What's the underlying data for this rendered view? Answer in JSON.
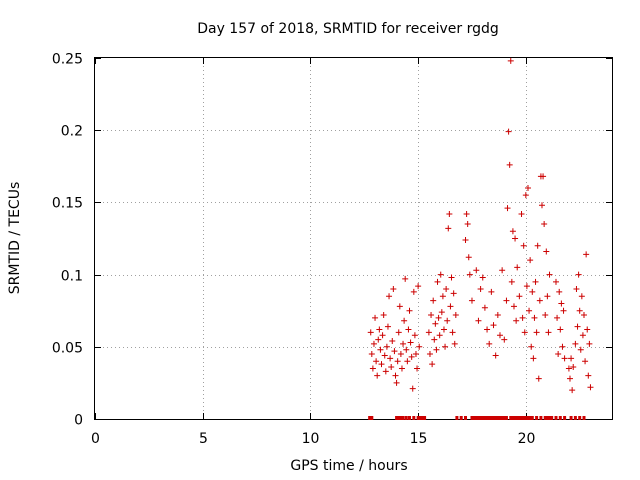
{
  "chart_data": {
    "type": "scatter",
    "title": "Day 157 of 2018, SRMTID for receiver rgdg",
    "xlabel": "GPS time / hours",
    "ylabel": "SRMTID / TECUs",
    "xlim": [
      0,
      24
    ],
    "ylim": [
      0,
      0.25
    ],
    "xticks": [
      0,
      5,
      10,
      15,
      20
    ],
    "xtick_labels": [
      "0",
      "5",
      "10",
      "15",
      "20"
    ],
    "yticks": [
      0,
      0.05,
      0.1,
      0.15,
      0.2,
      0.25
    ],
    "ytick_labels": [
      "0",
      "0.05",
      "0.1",
      "0.15",
      "0.2",
      "0.25"
    ],
    "grid": true,
    "marker": "+",
    "color": "#cc0000",
    "series": [
      {
        "name": "SRMTID",
        "points": [
          [
            12.8,
            0.06
          ],
          [
            12.85,
            0.045
          ],
          [
            12.9,
            0.035
          ],
          [
            12.95,
            0.052
          ],
          [
            13.0,
            0.07
          ],
          [
            13.05,
            0.04
          ],
          [
            13.1,
            0.03
          ],
          [
            13.15,
            0.055
          ],
          [
            13.2,
            0.062
          ],
          [
            13.25,
            0.048
          ],
          [
            13.3,
            0.038
          ],
          [
            13.35,
            0.058
          ],
          [
            13.4,
            0.072
          ],
          [
            13.45,
            0.044
          ],
          [
            13.5,
            0.033
          ],
          [
            13.55,
            0.05
          ],
          [
            13.6,
            0.064
          ],
          [
            13.65,
            0.085
          ],
          [
            13.7,
            0.042
          ],
          [
            13.75,
            0.036
          ],
          [
            13.8,
            0.054
          ],
          [
            13.85,
            0.09
          ],
          [
            13.9,
            0.047
          ],
          [
            13.95,
            0.03
          ],
          [
            14.0,
            0.025
          ],
          [
            14.05,
            0.04
          ],
          [
            14.1,
            0.06
          ],
          [
            14.15,
            0.078
          ],
          [
            14.2,
            0.045
          ],
          [
            14.25,
            0.035
          ],
          [
            14.3,
            0.052
          ],
          [
            14.35,
            0.068
          ],
          [
            14.4,
            0.097
          ],
          [
            14.45,
            0.048
          ],
          [
            14.5,
            0.04
          ],
          [
            14.55,
            0.062
          ],
          [
            14.6,
            0.075
          ],
          [
            14.65,
            0.053
          ],
          [
            14.7,
            0.043
          ],
          [
            14.75,
            0.021
          ],
          [
            14.8,
            0.088
          ],
          [
            14.85,
            0.058
          ],
          [
            14.9,
            0.045
          ],
          [
            14.95,
            0.035
          ],
          [
            15.0,
            0.092
          ],
          [
            15.05,
            0.05
          ],
          [
            15.5,
            0.06
          ],
          [
            15.55,
            0.045
          ],
          [
            15.6,
            0.072
          ],
          [
            15.65,
            0.038
          ],
          [
            15.7,
            0.082
          ],
          [
            15.75,
            0.055
          ],
          [
            15.8,
            0.066
          ],
          [
            15.85,
            0.048
          ],
          [
            15.9,
            0.095
          ],
          [
            15.95,
            0.07
          ],
          [
            16.0,
            0.058
          ],
          [
            16.05,
            0.1
          ],
          [
            16.1,
            0.074
          ],
          [
            16.15,
            0.085
          ],
          [
            16.2,
            0.062
          ],
          [
            16.25,
            0.05
          ],
          [
            16.3,
            0.09
          ],
          [
            16.35,
            0.068
          ],
          [
            16.4,
            0.132
          ],
          [
            16.45,
            0.142
          ],
          [
            16.5,
            0.078
          ],
          [
            16.55,
            0.098
          ],
          [
            16.6,
            0.06
          ],
          [
            16.65,
            0.087
          ],
          [
            16.7,
            0.052
          ],
          [
            16.75,
            0.072
          ],
          [
            17.2,
            0.124
          ],
          [
            17.25,
            0.142
          ],
          [
            17.3,
            0.135
          ],
          [
            17.35,
            0.112
          ],
          [
            17.4,
            0.1
          ],
          [
            17.5,
            0.082
          ],
          [
            17.7,
            0.103
          ],
          [
            17.8,
            0.068
          ],
          [
            17.9,
            0.09
          ],
          [
            18.0,
            0.098
          ],
          [
            18.1,
            0.077
          ],
          [
            18.2,
            0.062
          ],
          [
            18.3,
            0.052
          ],
          [
            18.4,
            0.088
          ],
          [
            18.5,
            0.065
          ],
          [
            18.6,
            0.044
          ],
          [
            18.7,
            0.072
          ],
          [
            18.8,
            0.058
          ],
          [
            18.9,
            0.103
          ],
          [
            19.0,
            0.055
          ],
          [
            19.1,
            0.082
          ],
          [
            19.15,
            0.146
          ],
          [
            19.2,
            0.199
          ],
          [
            19.25,
            0.176
          ],
          [
            19.3,
            0.248
          ],
          [
            19.35,
            0.095
          ],
          [
            19.4,
            0.13
          ],
          [
            19.45,
            0.078
          ],
          [
            19.5,
            0.125
          ],
          [
            19.55,
            0.068
          ],
          [
            19.6,
            0.105
          ],
          [
            19.7,
            0.085
          ],
          [
            19.8,
            0.142
          ],
          [
            19.85,
            0.07
          ],
          [
            19.9,
            0.12
          ],
          [
            19.95,
            0.06
          ],
          [
            20.0,
            0.155
          ],
          [
            20.05,
            0.092
          ],
          [
            20.1,
            0.16
          ],
          [
            20.15,
            0.075
          ],
          [
            20.2,
            0.11
          ],
          [
            20.25,
            0.05
          ],
          [
            20.3,
            0.088
          ],
          [
            20.35,
            0.042
          ],
          [
            20.4,
            0.07
          ],
          [
            20.45,
            0.095
          ],
          [
            20.5,
            0.06
          ],
          [
            20.55,
            0.12
          ],
          [
            20.6,
            0.028
          ],
          [
            20.65,
            0.082
          ],
          [
            20.7,
            0.168
          ],
          [
            20.75,
            0.148
          ],
          [
            20.8,
            0.168
          ],
          [
            20.85,
            0.135
          ],
          [
            20.9,
            0.072
          ],
          [
            20.95,
            0.116
          ],
          [
            21.0,
            0.085
          ],
          [
            21.05,
            0.06
          ],
          [
            21.1,
            0.1
          ],
          [
            21.4,
            0.095
          ],
          [
            21.45,
            0.07
          ],
          [
            21.5,
            0.045
          ],
          [
            21.55,
            0.088
          ],
          [
            21.6,
            0.062
          ],
          [
            21.65,
            0.08
          ],
          [
            21.7,
            0.05
          ],
          [
            21.75,
            0.075
          ],
          [
            21.8,
            0.042
          ],
          [
            22.0,
            0.035
          ],
          [
            22.05,
            0.028
          ],
          [
            22.1,
            0.042
          ],
          [
            22.15,
            0.02
          ],
          [
            22.2,
            0.036
          ],
          [
            22.3,
            0.052
          ],
          [
            22.35,
            0.09
          ],
          [
            22.4,
            0.064
          ],
          [
            22.45,
            0.1
          ],
          [
            22.5,
            0.075
          ],
          [
            22.55,
            0.048
          ],
          [
            22.6,
            0.085
          ],
          [
            22.65,
            0.058
          ],
          [
            22.7,
            0.072
          ],
          [
            22.75,
            0.04
          ],
          [
            22.8,
            0.114
          ],
          [
            22.85,
            0.062
          ],
          [
            22.9,
            0.03
          ],
          [
            22.95,
            0.052
          ],
          [
            23.0,
            0.022
          ]
        ],
        "zero_values_x": [
          12.75,
          12.8,
          12.85,
          14.0,
          14.1,
          14.2,
          14.3,
          14.45,
          14.6,
          14.8,
          15.0,
          15.1,
          15.2,
          15.3,
          16.8,
          17.0,
          17.2,
          17.5,
          17.6,
          17.7,
          17.8,
          17.9,
          18.0,
          18.1,
          18.2,
          18.3,
          18.4,
          18.5,
          18.6,
          18.7,
          18.8,
          18.9,
          19.0,
          19.1,
          19.3,
          19.4,
          19.5,
          19.6,
          19.7,
          19.8,
          19.9,
          20.0,
          20.1,
          20.2,
          20.3,
          20.5,
          20.7,
          20.9,
          21.0,
          21.1,
          21.2,
          21.4,
          21.6,
          21.8,
          22.1,
          22.3,
          22.5,
          22.7
        ]
      }
    ]
  }
}
